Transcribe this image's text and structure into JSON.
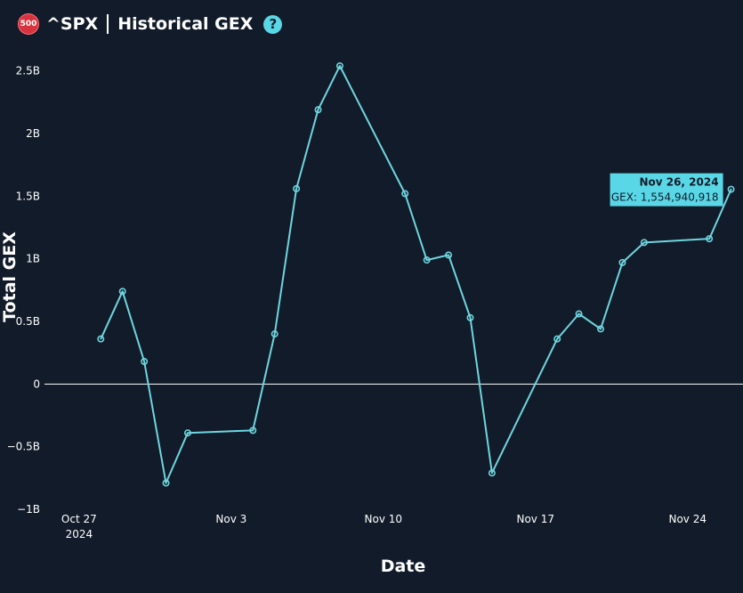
{
  "header": {
    "logo_text": "500",
    "ticker": "^SPX",
    "title": "Historical GEX",
    "help_icon": "?"
  },
  "colors": {
    "background": "#111b29",
    "line": "#6fd5df",
    "tooltip_bg": "#5ad7e6",
    "logo": "#d7343f",
    "zero_line": "#ffffff"
  },
  "tooltip": {
    "date": "Nov 26, 2024",
    "value_text": "GEX: 1,554,940,918"
  },
  "chart_data": {
    "type": "line",
    "xlabel": "Date",
    "ylabel": "Total GEX",
    "ylim": [
      -1000000000,
      2700000000
    ],
    "xlim": [
      "2024-10-25",
      "2024-11-27"
    ],
    "y_ticks": [
      {
        "value": -1000000000,
        "label": "−1B"
      },
      {
        "value": -500000000,
        "label": "−0.5B"
      },
      {
        "value": 0,
        "label": "0"
      },
      {
        "value": 500000000,
        "label": "0.5B"
      },
      {
        "value": 1000000000,
        "label": "1B"
      },
      {
        "value": 1500000000,
        "label": "1.5B"
      },
      {
        "value": 2000000000,
        "label": "2B"
      },
      {
        "value": 2500000000,
        "label": "2.5B"
      }
    ],
    "x_ticks": [
      {
        "date": "2024-10-27",
        "label": "Oct 27",
        "sublabel": "2024"
      },
      {
        "date": "2024-11-03",
        "label": "Nov 3",
        "sublabel": ""
      },
      {
        "date": "2024-11-10",
        "label": "Nov 10",
        "sublabel": ""
      },
      {
        "date": "2024-11-17",
        "label": "Nov 17",
        "sublabel": ""
      },
      {
        "date": "2024-11-24",
        "label": "Nov 24",
        "sublabel": ""
      }
    ],
    "grid": false,
    "series": [
      {
        "points": [
          {
            "x": "2024-10-28",
            "y": 360000000
          },
          {
            "x": "2024-10-29",
            "y": 740000000
          },
          {
            "x": "2024-10-30",
            "y": 180000000
          },
          {
            "x": "2024-10-31",
            "y": -790000000
          },
          {
            "x": "2024-11-01",
            "y": -390000000
          },
          {
            "x": "2024-11-04",
            "y": -370000000
          },
          {
            "x": "2024-11-05",
            "y": 400000000
          },
          {
            "x": "2024-11-06",
            "y": 1560000000
          },
          {
            "x": "2024-11-07",
            "y": 2190000000
          },
          {
            "x": "2024-11-08",
            "y": 2540000000
          },
          {
            "x": "2024-11-11",
            "y": 1520000000
          },
          {
            "x": "2024-11-12",
            "y": 990000000
          },
          {
            "x": "2024-11-13",
            "y": 1030000000
          },
          {
            "x": "2024-11-14",
            "y": 530000000
          },
          {
            "x": "2024-11-15",
            "y": -710000000
          },
          {
            "x": "2024-11-18",
            "y": 360000000
          },
          {
            "x": "2024-11-19",
            "y": 560000000
          },
          {
            "x": "2024-11-20",
            "y": 440000000
          },
          {
            "x": "2024-11-21",
            "y": 970000000
          },
          {
            "x": "2024-11-22",
            "y": 1130000000
          },
          {
            "x": "2024-11-25",
            "y": 1160000000
          },
          {
            "x": "2024-11-26",
            "y": 1554940918
          }
        ]
      }
    ]
  }
}
